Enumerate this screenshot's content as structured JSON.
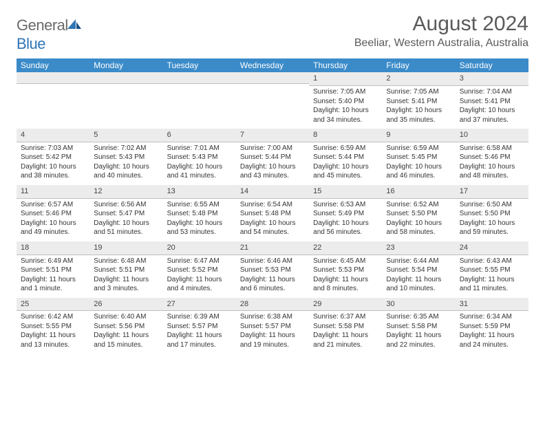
{
  "logo": {
    "general": "General",
    "blue": "Blue"
  },
  "title": "August 2024",
  "location": "Beeliar, Western Australia, Australia",
  "colors": {
    "header_bg": "#3b8bc9",
    "header_text": "#ffffff",
    "daynum_bg": "#ececec",
    "daynum_border": "#bfbfbf",
    "body_text": "#333333",
    "title_text": "#5a5a5a",
    "logo_gray": "#6a6a6a",
    "logo_blue": "#2f75b5"
  },
  "day_names": [
    "Sunday",
    "Monday",
    "Tuesday",
    "Wednesday",
    "Thursday",
    "Friday",
    "Saturday"
  ],
  "weeks": [
    [
      {
        "n": "",
        "sr": "",
        "ss": "",
        "dl": ""
      },
      {
        "n": "",
        "sr": "",
        "ss": "",
        "dl": ""
      },
      {
        "n": "",
        "sr": "",
        "ss": "",
        "dl": ""
      },
      {
        "n": "",
        "sr": "",
        "ss": "",
        "dl": ""
      },
      {
        "n": "1",
        "sr": "Sunrise: 7:05 AM",
        "ss": "Sunset: 5:40 PM",
        "dl": "Daylight: 10 hours and 34 minutes."
      },
      {
        "n": "2",
        "sr": "Sunrise: 7:05 AM",
        "ss": "Sunset: 5:41 PM",
        "dl": "Daylight: 10 hours and 35 minutes."
      },
      {
        "n": "3",
        "sr": "Sunrise: 7:04 AM",
        "ss": "Sunset: 5:41 PM",
        "dl": "Daylight: 10 hours and 37 minutes."
      }
    ],
    [
      {
        "n": "4",
        "sr": "Sunrise: 7:03 AM",
        "ss": "Sunset: 5:42 PM",
        "dl": "Daylight: 10 hours and 38 minutes."
      },
      {
        "n": "5",
        "sr": "Sunrise: 7:02 AM",
        "ss": "Sunset: 5:43 PM",
        "dl": "Daylight: 10 hours and 40 minutes."
      },
      {
        "n": "6",
        "sr": "Sunrise: 7:01 AM",
        "ss": "Sunset: 5:43 PM",
        "dl": "Daylight: 10 hours and 41 minutes."
      },
      {
        "n": "7",
        "sr": "Sunrise: 7:00 AM",
        "ss": "Sunset: 5:44 PM",
        "dl": "Daylight: 10 hours and 43 minutes."
      },
      {
        "n": "8",
        "sr": "Sunrise: 6:59 AM",
        "ss": "Sunset: 5:44 PM",
        "dl": "Daylight: 10 hours and 45 minutes."
      },
      {
        "n": "9",
        "sr": "Sunrise: 6:59 AM",
        "ss": "Sunset: 5:45 PM",
        "dl": "Daylight: 10 hours and 46 minutes."
      },
      {
        "n": "10",
        "sr": "Sunrise: 6:58 AM",
        "ss": "Sunset: 5:46 PM",
        "dl": "Daylight: 10 hours and 48 minutes."
      }
    ],
    [
      {
        "n": "11",
        "sr": "Sunrise: 6:57 AM",
        "ss": "Sunset: 5:46 PM",
        "dl": "Daylight: 10 hours and 49 minutes."
      },
      {
        "n": "12",
        "sr": "Sunrise: 6:56 AM",
        "ss": "Sunset: 5:47 PM",
        "dl": "Daylight: 10 hours and 51 minutes."
      },
      {
        "n": "13",
        "sr": "Sunrise: 6:55 AM",
        "ss": "Sunset: 5:48 PM",
        "dl": "Daylight: 10 hours and 53 minutes."
      },
      {
        "n": "14",
        "sr": "Sunrise: 6:54 AM",
        "ss": "Sunset: 5:48 PM",
        "dl": "Daylight: 10 hours and 54 minutes."
      },
      {
        "n": "15",
        "sr": "Sunrise: 6:53 AM",
        "ss": "Sunset: 5:49 PM",
        "dl": "Daylight: 10 hours and 56 minutes."
      },
      {
        "n": "16",
        "sr": "Sunrise: 6:52 AM",
        "ss": "Sunset: 5:50 PM",
        "dl": "Daylight: 10 hours and 58 minutes."
      },
      {
        "n": "17",
        "sr": "Sunrise: 6:50 AM",
        "ss": "Sunset: 5:50 PM",
        "dl": "Daylight: 10 hours and 59 minutes."
      }
    ],
    [
      {
        "n": "18",
        "sr": "Sunrise: 6:49 AM",
        "ss": "Sunset: 5:51 PM",
        "dl": "Daylight: 11 hours and 1 minute."
      },
      {
        "n": "19",
        "sr": "Sunrise: 6:48 AM",
        "ss": "Sunset: 5:51 PM",
        "dl": "Daylight: 11 hours and 3 minutes."
      },
      {
        "n": "20",
        "sr": "Sunrise: 6:47 AM",
        "ss": "Sunset: 5:52 PM",
        "dl": "Daylight: 11 hours and 4 minutes."
      },
      {
        "n": "21",
        "sr": "Sunrise: 6:46 AM",
        "ss": "Sunset: 5:53 PM",
        "dl": "Daylight: 11 hours and 6 minutes."
      },
      {
        "n": "22",
        "sr": "Sunrise: 6:45 AM",
        "ss": "Sunset: 5:53 PM",
        "dl": "Daylight: 11 hours and 8 minutes."
      },
      {
        "n": "23",
        "sr": "Sunrise: 6:44 AM",
        "ss": "Sunset: 5:54 PM",
        "dl": "Daylight: 11 hours and 10 minutes."
      },
      {
        "n": "24",
        "sr": "Sunrise: 6:43 AM",
        "ss": "Sunset: 5:55 PM",
        "dl": "Daylight: 11 hours and 11 minutes."
      }
    ],
    [
      {
        "n": "25",
        "sr": "Sunrise: 6:42 AM",
        "ss": "Sunset: 5:55 PM",
        "dl": "Daylight: 11 hours and 13 minutes."
      },
      {
        "n": "26",
        "sr": "Sunrise: 6:40 AM",
        "ss": "Sunset: 5:56 PM",
        "dl": "Daylight: 11 hours and 15 minutes."
      },
      {
        "n": "27",
        "sr": "Sunrise: 6:39 AM",
        "ss": "Sunset: 5:57 PM",
        "dl": "Daylight: 11 hours and 17 minutes."
      },
      {
        "n": "28",
        "sr": "Sunrise: 6:38 AM",
        "ss": "Sunset: 5:57 PM",
        "dl": "Daylight: 11 hours and 19 minutes."
      },
      {
        "n": "29",
        "sr": "Sunrise: 6:37 AM",
        "ss": "Sunset: 5:58 PM",
        "dl": "Daylight: 11 hours and 21 minutes."
      },
      {
        "n": "30",
        "sr": "Sunrise: 6:35 AM",
        "ss": "Sunset: 5:58 PM",
        "dl": "Daylight: 11 hours and 22 minutes."
      },
      {
        "n": "31",
        "sr": "Sunrise: 6:34 AM",
        "ss": "Sunset: 5:59 PM",
        "dl": "Daylight: 11 hours and 24 minutes."
      }
    ]
  ]
}
